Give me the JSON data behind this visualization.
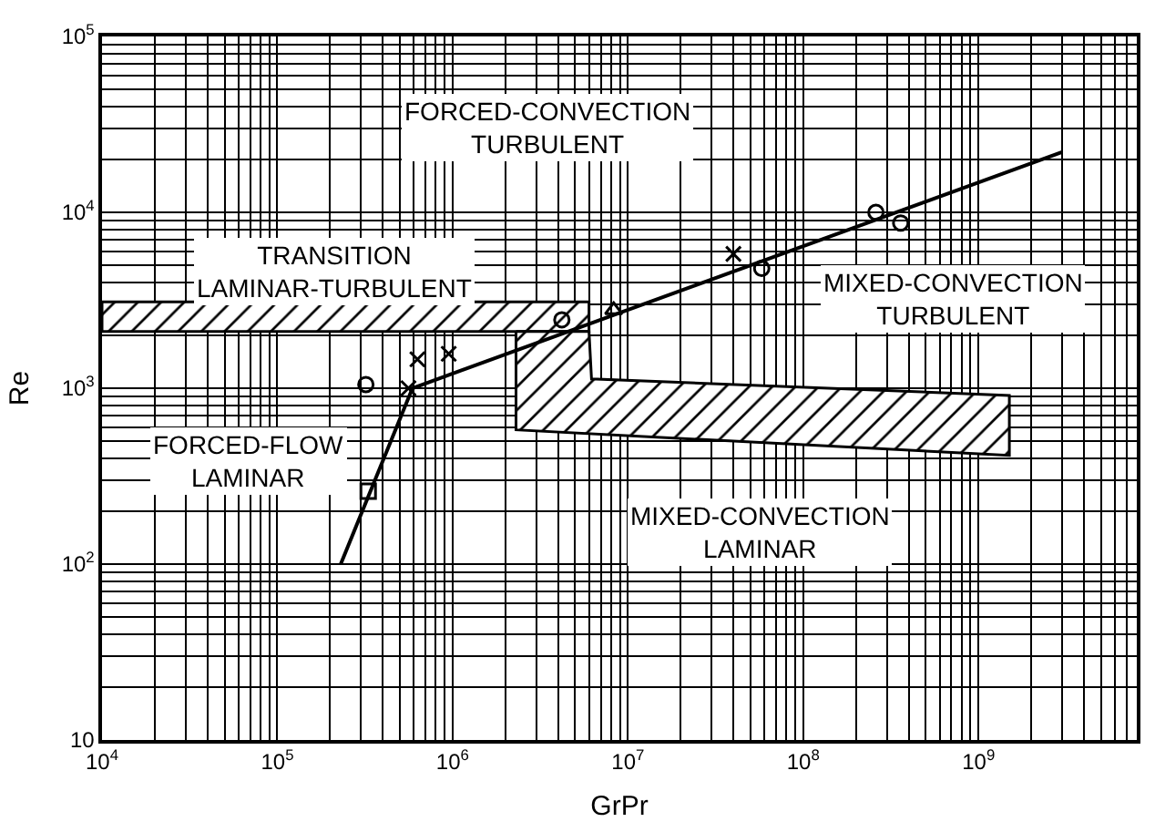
{
  "chart_data": {
    "type": "line",
    "xlabel": "GrPr",
    "ylabel": "Re",
    "log": "xy",
    "grid": true,
    "xlim": [
      10000,
      8000000000
    ],
    "ylim": [
      10,
      100000
    ],
    "xticks": [
      {
        "value": 10000,
        "label": "10$^{4}$"
      },
      {
        "value": 100000,
        "label": "10$^{5}$"
      },
      {
        "value": 1000000,
        "label": "10$^{6}$"
      },
      {
        "value": 10000000,
        "label": "10$^{7}$"
      },
      {
        "value": 100000000,
        "label": "10$^{8}$"
      },
      {
        "value": 1000000000,
        "label": "10$^{9}$"
      }
    ],
    "yticks": [
      10,
      {
        "value": 100,
        "label": "10$^{2}$"
      },
      {
        "value": 1000,
        "label": "10$^{3}$"
      },
      {
        "value": 10000,
        "label": "10$^{4}$"
      },
      {
        "value": 100000,
        "label": "10$^{5}$"
      }
    ],
    "series": [
      {
        "type": "area",
        "color": "#000000",
        "x": [
          10000,
          6000000,
          6000000,
          10000
        ],
        "values": [
          3100,
          3100,
          2100,
          2100
        ]
      },
      {
        "type": "area",
        "color": "#000000",
        "x": [
          2300000,
          6000000,
          6200000,
          1500000000,
          1500000000,
          2300000
        ],
        "values": [
          2100,
          2100,
          1130,
          910,
          415,
          580
        ]
      },
      {
        "color": "#000000",
        "marker": "none",
        "line_style": "solid",
        "x": [
          230000,
          590000,
          3000000000
        ],
        "values": [
          100,
          1000,
          22000
        ]
      },
      {
        "type": "scatter",
        "color": "#000000",
        "marker": "circle",
        "x": [
          320000,
          4200000,
          58000000,
          260000000,
          360000000
        ],
        "values": [
          1050,
          2450,
          4800,
          10000,
          8700
        ]
      },
      {
        "type": "scatter",
        "color": "#000000",
        "marker": "cross",
        "x": [
          560000,
          630000,
          950000,
          40000000
        ],
        "values": [
          1000,
          1460,
          1570,
          5800
        ]
      },
      {
        "type": "scatter",
        "color": "#000000",
        "marker": "triangle",
        "x": [
          8300000
        ],
        "values": [
          2780
        ]
      },
      {
        "type": "scatter",
        "color": "#000000",
        "marker": "square",
        "x": [
          330000
        ],
        "values": [
          260
        ]
      }
    ],
    "annotations": [
      "FORCED-CONVECTION\nTURBULENT",
      "TRANSITION\nLAMINAR-TURBULENT",
      "MIXED-CONVECTION\nTURBULENT",
      "FORCED-FLOW\nLAMINAR",
      "MIXED-CONVECTION\nLAMINAR"
    ]
  }
}
